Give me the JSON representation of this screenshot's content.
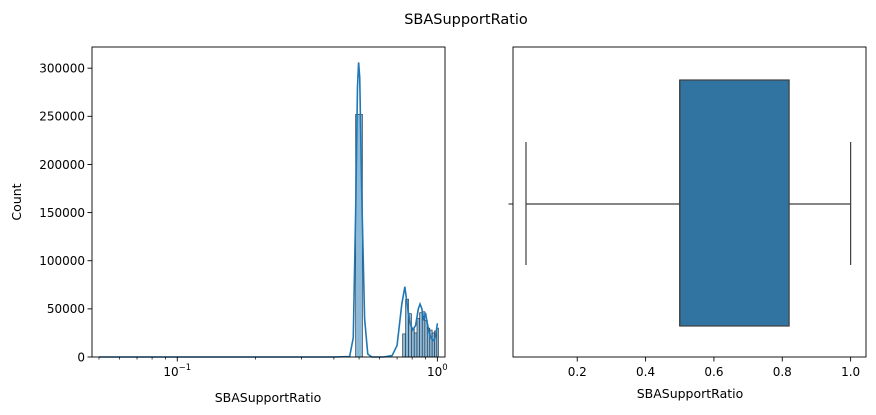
{
  "suptitle": "SBASupportRatio",
  "colors": {
    "hist_fill": "#8ebad9",
    "hist_edge": "#2b3f50",
    "kde_line": "#1f77b4",
    "box_fill": "#3274a1",
    "box_edge": "#3f3f3f"
  },
  "chart_data": [
    {
      "type": "histogram",
      "xlabel": "SBASupportRatio",
      "ylabel": "Count",
      "xscale": "log",
      "xlim": [
        0.047,
        1.07
      ],
      "ylim": [
        0,
        322000
      ],
      "x_ticks": [
        {
          "value": 0.1,
          "label": "10",
          "exp": "−1"
        },
        {
          "value": 1.0,
          "label": "10",
          "exp": "0"
        }
      ],
      "y_ticks": [
        {
          "value": 0,
          "label": "0"
        },
        {
          "value": 50000,
          "label": "50000"
        },
        {
          "value": 100000,
          "label": "100000"
        },
        {
          "value": 150000,
          "label": "150000"
        },
        {
          "value": 200000,
          "label": "200000"
        },
        {
          "value": 250000,
          "label": "250000"
        },
        {
          "value": 300000,
          "label": "300000"
        }
      ],
      "bins": [
        {
          "x0": 0.485,
          "x1": 0.515,
          "count": 252000
        },
        {
          "x0": 0.735,
          "x1": 0.755,
          "count": 24000
        },
        {
          "x0": 0.755,
          "x1": 0.775,
          "count": 60000
        },
        {
          "x0": 0.775,
          "x1": 0.795,
          "count": 45000
        },
        {
          "x0": 0.795,
          "x1": 0.815,
          "count": 30000
        },
        {
          "x0": 0.815,
          "x1": 0.835,
          "count": 25000
        },
        {
          "x0": 0.835,
          "x1": 0.855,
          "count": 40000
        },
        {
          "x0": 0.855,
          "x1": 0.875,
          "count": 46000
        },
        {
          "x0": 0.875,
          "x1": 0.895,
          "count": 47000
        },
        {
          "x0": 0.895,
          "x1": 0.915,
          "count": 38000
        },
        {
          "x0": 0.915,
          "x1": 0.935,
          "count": 30000
        },
        {
          "x0": 0.935,
          "x1": 0.955,
          "count": 28000
        },
        {
          "x0": 0.955,
          "x1": 0.975,
          "count": 25000
        },
        {
          "x0": 0.975,
          "x1": 0.995,
          "count": 27000
        },
        {
          "x0": 0.995,
          "x1": 1.01,
          "count": 30000
        }
      ],
      "kde": [
        {
          "x": 0.05,
          "y": 0
        },
        {
          "x": 0.2,
          "y": 0
        },
        {
          "x": 0.4,
          "y": 0
        },
        {
          "x": 0.46,
          "y": 500
        },
        {
          "x": 0.475,
          "y": 20000
        },
        {
          "x": 0.485,
          "y": 150000
        },
        {
          "x": 0.493,
          "y": 280000
        },
        {
          "x": 0.498,
          "y": 306000
        },
        {
          "x": 0.503,
          "y": 290000
        },
        {
          "x": 0.512,
          "y": 170000
        },
        {
          "x": 0.525,
          "y": 40000
        },
        {
          "x": 0.54,
          "y": 3000
        },
        {
          "x": 0.56,
          "y": 0
        },
        {
          "x": 0.62,
          "y": 0
        },
        {
          "x": 0.67,
          "y": 1500
        },
        {
          "x": 0.7,
          "y": 12000
        },
        {
          "x": 0.73,
          "y": 55000
        },
        {
          "x": 0.75,
          "y": 73000
        },
        {
          "x": 0.765,
          "y": 55000
        },
        {
          "x": 0.785,
          "y": 35000
        },
        {
          "x": 0.805,
          "y": 28000
        },
        {
          "x": 0.825,
          "y": 33000
        },
        {
          "x": 0.845,
          "y": 50000
        },
        {
          "x": 0.858,
          "y": 55000
        },
        {
          "x": 0.872,
          "y": 50000
        },
        {
          "x": 0.885,
          "y": 38000
        },
        {
          "x": 0.9,
          "y": 46000
        },
        {
          "x": 0.912,
          "y": 37000
        },
        {
          "x": 0.93,
          "y": 25000
        },
        {
          "x": 0.95,
          "y": 19000
        },
        {
          "x": 0.97,
          "y": 17000
        },
        {
          "x": 0.985,
          "y": 22000
        },
        {
          "x": 1.0,
          "y": 35000
        }
      ]
    },
    {
      "type": "box",
      "xlabel": "SBASupportRatio",
      "xlim": [
        0.012,
        1.045
      ],
      "x_ticks": [
        {
          "value": 0.2,
          "label": "0.2"
        },
        {
          "value": 0.4,
          "label": "0.4"
        },
        {
          "value": 0.6,
          "label": "0.6"
        },
        {
          "value": 0.8,
          "label": "0.8"
        },
        {
          "value": 1.0,
          "label": "1.0"
        }
      ],
      "whisker_low": 0.05,
      "q1": 0.5,
      "median": 0.5,
      "q3": 0.82,
      "whisker_high": 1.0
    }
  ]
}
